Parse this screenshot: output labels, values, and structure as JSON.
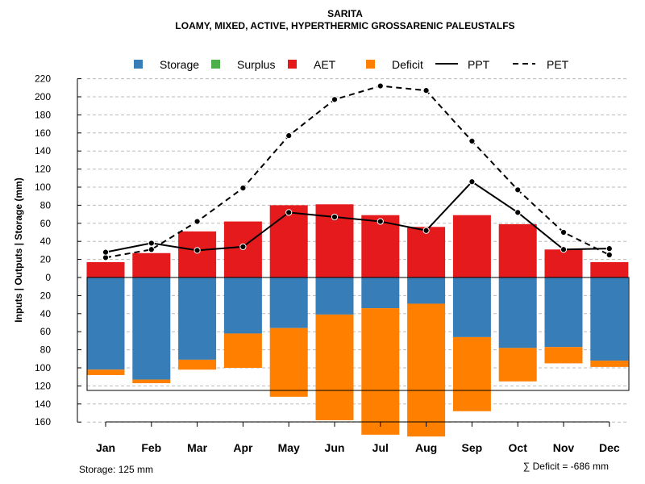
{
  "chart_data": {
    "type": "bar",
    "title": "SARITA",
    "subtitle": "LOAMY, MIXED, ACTIVE, HYPERTHERMIC GROSSARENIC PALEUSTALFS",
    "ylabel": "Inputs | Outputs | Storage     (mm)",
    "categories": [
      "Jan",
      "Feb",
      "Mar",
      "Apr",
      "May",
      "Jun",
      "Jul",
      "Aug",
      "Sep",
      "Oct",
      "Nov",
      "Dec"
    ],
    "yticks_up": [
      0,
      20,
      40,
      60,
      80,
      100,
      120,
      140,
      160,
      180,
      200,
      220
    ],
    "yticks_down": [
      20,
      40,
      60,
      80,
      100,
      120,
      140,
      160
    ],
    "ylim": [
      -160,
      220
    ],
    "legend": [
      {
        "name": "Storage",
        "color": "#377EB8",
        "kind": "box"
      },
      {
        "name": "Surplus",
        "color": "#4DAF4A",
        "kind": "box"
      },
      {
        "name": "AET",
        "color": "#E41A1C",
        "kind": "box"
      },
      {
        "name": "Deficit",
        "color": "#FF7F00",
        "kind": "box"
      },
      {
        "name": "PPT",
        "color": "#000000",
        "kind": "solid"
      },
      {
        "name": "PET",
        "color": "#000000",
        "kind": "dashed"
      }
    ],
    "series": [
      {
        "name": "AET",
        "values": [
          17,
          27,
          51,
          62,
          80,
          81,
          69,
          56,
          69,
          59,
          31,
          17
        ]
      },
      {
        "name": "Storage",
        "values": [
          102,
          113,
          91,
          62,
          56,
          41,
          34,
          29,
          66,
          78,
          77,
          92
        ]
      },
      {
        "name": "Deficit",
        "values": [
          6,
          4,
          11,
          38,
          76,
          117,
          140,
          147,
          82,
          37,
          18,
          7
        ]
      },
      {
        "name": "Surplus",
        "values": [
          0,
          0,
          0,
          0,
          0,
          0,
          0,
          0,
          0,
          0,
          0,
          0
        ]
      },
      {
        "name": "PPT",
        "values": [
          28,
          38,
          30,
          34,
          72,
          67,
          62,
          52,
          106,
          72,
          31,
          32
        ]
      },
      {
        "name": "PET",
        "values": [
          22,
          31,
          62,
          99,
          157,
          197,
          212,
          207,
          151,
          97,
          50,
          25
        ]
      }
    ],
    "storage_capacity": 125,
    "storage_label": "Storage: 125 mm",
    "deficit_label": "∑ Deficit = -686 mm",
    "grid": true
  }
}
